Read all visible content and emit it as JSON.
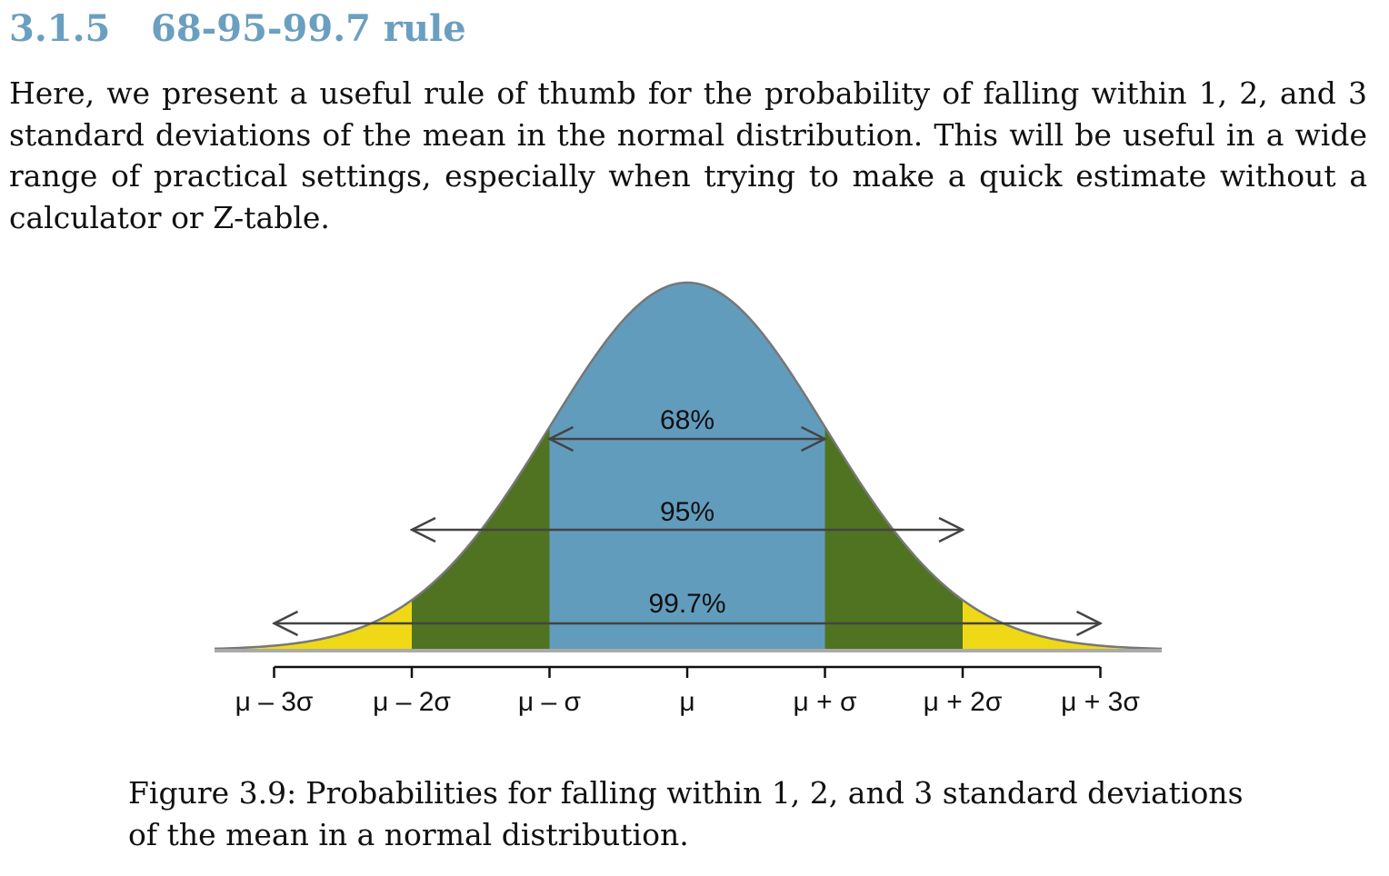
{
  "section": {
    "number": "3.1.5",
    "title": "68-95-99.7 rule"
  },
  "intro_text": "Here, we present a useful rule of thumb for the probability of falling within 1, 2, and 3 standard deviations of the mean in the normal distribution. This will be useful in a wide range of practical settings, especially when trying to make a quick estimate without a calculator or Z-table.",
  "figure": {
    "caption_label": "Figure 3.9:",
    "caption_text": "Probabilities for falling within 1, 2, and 3 standard deviations of the mean in a normal distribution.",
    "colors": {
      "center_band": "#629cbd",
      "middle_band": "#4f7320",
      "outer_band": "#efd916",
      "curve": "#777777",
      "baseline": "#aaaaaa",
      "arrows": "#444444",
      "heading": "#6a9fc0"
    }
  },
  "chart_data": {
    "type": "area",
    "x": [
      -3,
      -2,
      -1,
      0,
      1,
      2,
      3
    ],
    "tick_labels": [
      "μ – 3σ",
      "μ – 2σ",
      "μ – σ",
      "μ",
      "μ + σ",
      "μ + 2σ",
      "μ + 3σ"
    ],
    "xlim": [
      -3.5,
      3.5
    ],
    "bands": [
      {
        "label": "68%",
        "from": -1,
        "to": 1,
        "probability": 0.68
      },
      {
        "label": "95%",
        "from": -2,
        "to": 2,
        "probability": 0.95
      },
      {
        "label": "99.7%",
        "from": -3,
        "to": 3,
        "probability": 0.997
      }
    ],
    "title": "",
    "xlabel": "",
    "ylabel": "",
    "grid": false
  }
}
